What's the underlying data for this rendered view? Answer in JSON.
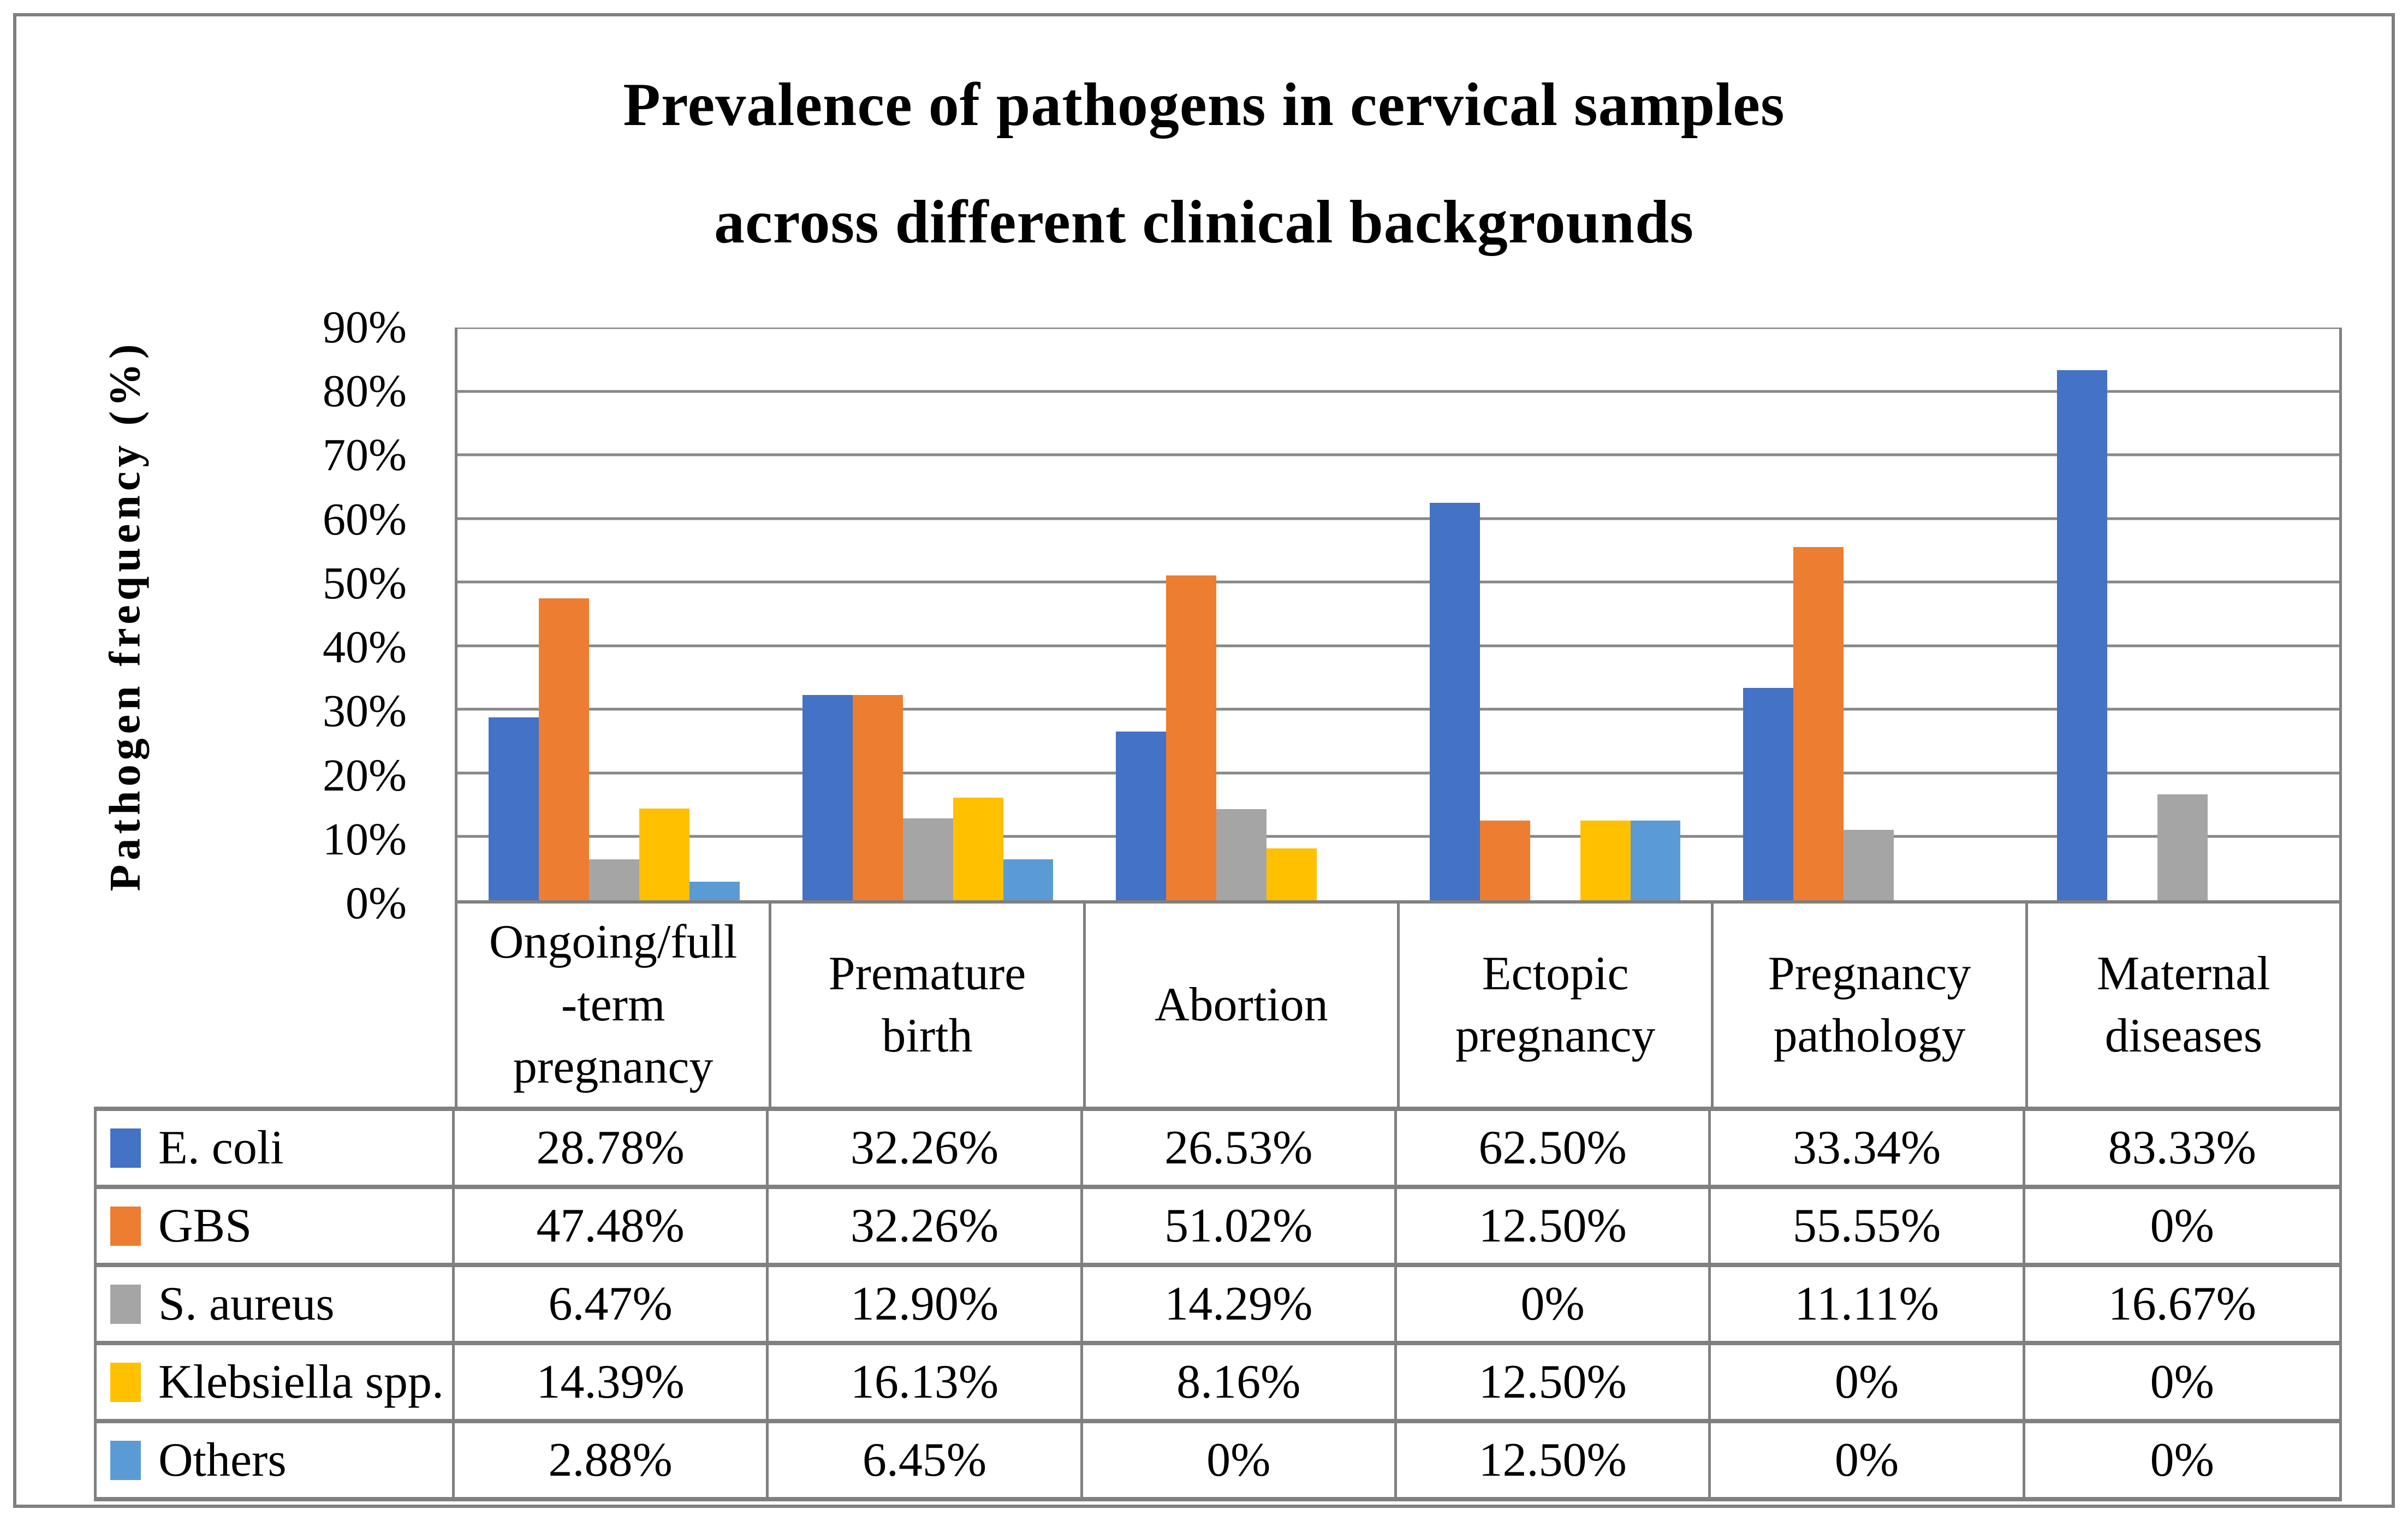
{
  "chart_data": {
    "type": "bar",
    "title": "Prevalence of pathogens in cervical samples across different clinical backgrounds",
    "title_lines": [
      "Prevalence of pathogens in cervical samples",
      "across different clinical backgrounds"
    ],
    "ylabel": "Pathogen frequency (%)",
    "ylim": [
      0,
      90
    ],
    "y_ticks": [
      "0%",
      "10%",
      "20%",
      "30%",
      "40%",
      "50%",
      "60%",
      "70%",
      "80%",
      "90%"
    ],
    "grid": true,
    "legend_position": "data-table-left-column",
    "categories": [
      "Ongoing/full-term pregnancy",
      "Premature birth",
      "Abortion",
      "Ectopic pregnancy",
      "Pregnancy pathology",
      "Maternal diseases"
    ],
    "category_display": [
      "Ongoing/full\n-term\npregnancy",
      "Premature\nbirth",
      "Abortion",
      "Ectopic\npregnancy",
      "Pregnancy\npathology",
      "Maternal\ndiseases"
    ],
    "series": [
      {
        "name": "E. coli",
        "color": "#4472C4",
        "values": [
          28.78,
          32.26,
          26.53,
          62.5,
          33.34,
          83.33
        ],
        "display": [
          "28.78%",
          "32.26%",
          "26.53%",
          "62.50%",
          "33.34%",
          "83.33%"
        ]
      },
      {
        "name": "GBS",
        "color": "#ED7D31",
        "values": [
          47.48,
          32.26,
          51.02,
          12.5,
          55.55,
          0
        ],
        "display": [
          "47.48%",
          "32.26%",
          "51.02%",
          "12.50%",
          "55.55%",
          "0%"
        ]
      },
      {
        "name": "S. aureus",
        "color": "#A5A5A5",
        "values": [
          6.47,
          12.9,
          14.29,
          0,
          11.11,
          16.67
        ],
        "display": [
          "6.47%",
          "12.90%",
          "14.29%",
          "0%",
          "11.11%",
          "16.67%"
        ]
      },
      {
        "name": "Klebsiella spp.",
        "color": "#FFC000",
        "values": [
          14.39,
          16.13,
          8.16,
          12.5,
          0,
          0
        ],
        "display": [
          "14.39%",
          "16.13%",
          "8.16%",
          "12.50%",
          "0%",
          "0%"
        ]
      },
      {
        "name": "Others",
        "color": "#5B9BD5",
        "values": [
          2.88,
          6.45,
          0,
          12.5,
          0,
          0
        ],
        "display": [
          "2.88%",
          "6.45%",
          "0%",
          "12.50%",
          "0%",
          "0%"
        ]
      }
    ],
    "border_color": "#808080",
    "gridline_color": "#878787"
  }
}
